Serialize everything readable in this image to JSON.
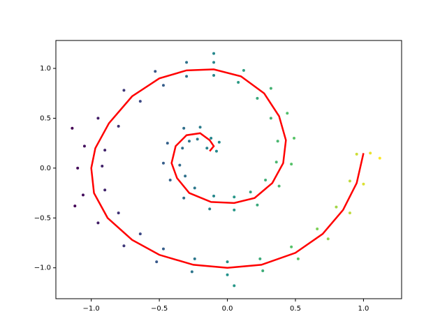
{
  "chart_data": {
    "type": "scatter",
    "scatter": {
      "x": [
        -0.15,
        -0.08,
        -0.12,
        -0.06,
        -0.2,
        -0.22,
        -0.32,
        -0.28,
        -0.44,
        -0.33,
        -0.47,
        -0.35,
        -0.42,
        -0.31,
        -0.32,
        -0.24,
        -0.13,
        -0.1,
        0.05,
        0.05,
        0.22,
        0.17,
        0.38,
        0.28,
        0.47,
        0.36,
        0.49,
        0.37,
        0.44,
        0.32,
        0.32,
        0.22,
        0.12,
        0.08,
        -0.1,
        -0.1,
        -0.3,
        -0.3,
        -0.53,
        -0.47,
        -0.76,
        -0.64,
        -0.95,
        -0.8,
        -1.05,
        -0.9,
        -1.1,
        -0.92,
        -1.06,
        -0.9,
        -0.95,
        -0.8,
        -0.76,
        -0.64,
        -0.52,
        -0.47,
        -0.26,
        -0.24,
        0.0,
        0.0,
        0.26,
        0.24,
        0.52,
        0.47,
        0.74,
        0.66,
        0.9,
        0.8,
        1.0,
        0.9,
        1.05,
        0.95,
        1.12,
        -1.12,
        -1.14,
        0.05,
        -0.1
      ],
      "y": [
        0.2,
        0.17,
        0.3,
        0.26,
        0.41,
        0.29,
        0.4,
        0.27,
        0.25,
        0.2,
        0.05,
        0.03,
        -0.12,
        -0.08,
        -0.3,
        -0.2,
        -0.41,
        -0.28,
        -0.42,
        -0.29,
        -0.37,
        -0.24,
        -0.18,
        -0.12,
        0.04,
        0.06,
        0.3,
        0.27,
        0.55,
        0.5,
        0.8,
        0.7,
        0.98,
        0.86,
        1.06,
        0.93,
        1.06,
        0.92,
        0.97,
        0.83,
        0.78,
        0.67,
        0.5,
        0.42,
        0.22,
        0.18,
        0.0,
        0.02,
        -0.27,
        -0.22,
        -0.55,
        -0.45,
        -0.78,
        -0.66,
        -0.94,
        -0.81,
        -1.04,
        -0.91,
        -1.07,
        -0.94,
        -1.03,
        -0.91,
        -0.91,
        -0.79,
        -0.71,
        -0.61,
        -0.45,
        -0.39,
        -0.16,
        -0.13,
        0.15,
        0.14,
        0.1,
        -0.38,
        0.4,
        -1.18,
        1.15
      ],
      "colormap": "viridis"
    },
    "line": {
      "x": [
        -0.13,
        -0.1,
        -0.13,
        -0.2,
        -0.3,
        -0.38,
        -0.41,
        -0.37,
        -0.28,
        -0.12,
        0.05,
        0.2,
        0.33,
        0.41,
        0.43,
        0.38,
        0.27,
        0.1,
        -0.1,
        -0.3,
        -0.5,
        -0.7,
        -0.87,
        -0.97,
        -1.0,
        -0.98,
        -0.88,
        -0.7,
        -0.5,
        -0.25,
        0.0,
        0.25,
        0.5,
        0.7,
        0.85,
        0.95,
        1.0
      ],
      "y": [
        0.17,
        0.22,
        0.28,
        0.35,
        0.33,
        0.22,
        0.05,
        -0.1,
        -0.25,
        -0.34,
        -0.35,
        -0.3,
        -0.15,
        0.05,
        0.28,
        0.52,
        0.75,
        0.92,
        0.99,
        0.98,
        0.9,
        0.72,
        0.45,
        0.2,
        0.0,
        -0.25,
        -0.5,
        -0.72,
        -0.87,
        -0.97,
        -1.0,
        -0.97,
        -0.85,
        -0.66,
        -0.42,
        -0.15,
        0.15
      ],
      "color": "#ff0000"
    },
    "xlim": [
      -1.26,
      1.28
    ],
    "ylim": [
      -1.31,
      1.28
    ],
    "xticks": [
      {
        "value": -1.0,
        "label": "−1.0"
      },
      {
        "value": -0.5,
        "label": "−0.5"
      },
      {
        "value": 0.0,
        "label": "0.0"
      },
      {
        "value": 0.5,
        "label": "0.5"
      },
      {
        "value": 1.0,
        "label": "1.0"
      }
    ],
    "yticks": [
      {
        "value": -1.0,
        "label": "−1.0"
      },
      {
        "value": -0.5,
        "label": "−0.5"
      },
      {
        "value": 0.0,
        "label": "0.0"
      },
      {
        "value": 0.5,
        "label": "0.5"
      },
      {
        "value": 1.0,
        "label": "1.0"
      }
    ]
  }
}
